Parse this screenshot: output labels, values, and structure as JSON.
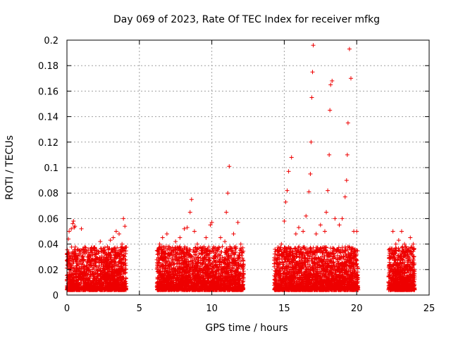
{
  "chart_data": {
    "type": "scatter",
    "title": "Day 069 of 2023, Rate Of TEC Index for receiver mfkg",
    "xlabel": "GPS time / hours",
    "ylabel": "ROTI / TECUs",
    "xlim": [
      0,
      25
    ],
    "ylim": [
      0,
      0.2
    ],
    "x_ticks": [
      0,
      5,
      10,
      15,
      20,
      25
    ],
    "y_ticks": [
      0,
      0.02,
      0.04,
      0.06,
      0.08,
      0.1,
      0.12,
      0.14,
      0.16,
      0.18,
      0.2
    ],
    "x_tick_labels": [
      "0",
      "5",
      "10",
      "15",
      "20",
      "25"
    ],
    "y_tick_labels": [
      "0",
      "0.02",
      "0.04",
      "0.06",
      "0.08",
      "0.1",
      "0.12",
      "0.14",
      "0.16",
      "0.18",
      "0.2"
    ],
    "grid": true,
    "marker": "+",
    "color": "#ee0000",
    "series": [
      {
        "x": [
          0.1,
          0.15,
          0.2,
          0.3,
          0.4,
          0.45,
          0.5,
          0.55,
          0.6,
          0.7,
          0.8,
          1.0,
          1.2,
          1.5,
          1.7,
          2.0,
          2.3,
          2.5,
          2.8,
          3.0,
          3.2,
          3.4,
          3.6,
          3.8,
          3.9,
          4.0,
          6.4,
          6.6,
          6.9,
          7.2,
          7.5,
          7.8,
          8.1,
          8.3,
          8.5,
          8.6,
          8.8,
          9.0,
          9.3,
          9.6,
          9.9,
          10.0,
          10.3,
          10.6,
          10.9,
          11.0,
          11.1,
          11.2,
          11.5,
          11.8,
          12.0,
          14.5,
          14.8,
          15.0,
          15.1,
          15.2,
          15.3,
          15.5,
          15.8,
          16.0,
          16.3,
          16.5,
          16.7,
          16.8,
          16.85,
          16.9,
          16.95,
          17.0,
          17.2,
          17.5,
          17.8,
          17.9,
          18.0,
          18.1,
          18.15,
          18.2,
          18.3,
          18.5,
          18.8,
          19.0,
          19.2,
          19.3,
          19.35,
          19.4,
          19.5,
          19.6,
          19.8,
          20.0,
          22.3,
          22.5,
          22.7,
          22.9,
          23.1,
          23.3,
          23.5,
          23.7,
          23.9
        ],
        "y": [
          0.044,
          0.05,
          0.025,
          0.052,
          0.056,
          0.058,
          0.053,
          0.054,
          0.03,
          0.02,
          0.015,
          0.052,
          0.036,
          0.028,
          0.025,
          0.03,
          0.042,
          0.035,
          0.038,
          0.043,
          0.045,
          0.05,
          0.048,
          0.04,
          0.06,
          0.054,
          0.04,
          0.045,
          0.048,
          0.035,
          0.042,
          0.045,
          0.052,
          0.053,
          0.065,
          0.075,
          0.05,
          0.04,
          0.035,
          0.045,
          0.055,
          0.057,
          0.035,
          0.045,
          0.042,
          0.065,
          0.08,
          0.101,
          0.048,
          0.057,
          0.04,
          0.025,
          0.04,
          0.058,
          0.073,
          0.082,
          0.097,
          0.108,
          0.048,
          0.053,
          0.05,
          0.062,
          0.081,
          0.095,
          0.12,
          0.155,
          0.175,
          0.196,
          0.048,
          0.055,
          0.05,
          0.065,
          0.082,
          0.11,
          0.145,
          0.165,
          0.168,
          0.06,
          0.055,
          0.06,
          0.077,
          0.09,
          0.11,
          0.135,
          0.193,
          0.17,
          0.05,
          0.05,
          0.035,
          0.05,
          0.04,
          0.043,
          0.05,
          0.04,
          0.035,
          0.045,
          0.04
        ]
      }
    ]
  }
}
